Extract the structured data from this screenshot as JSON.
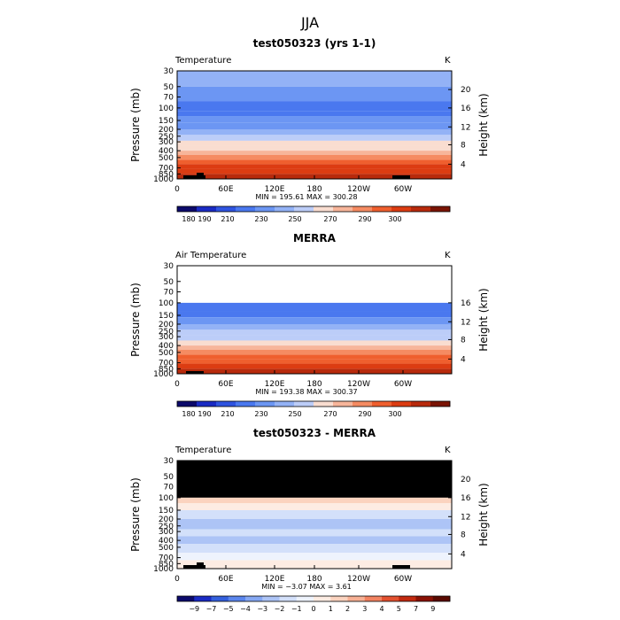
{
  "page_title": "JJA",
  "chart_data": [
    {
      "type": "heatmap",
      "title": "test050323 (yrs 1-1)",
      "variable_label": "Temperature",
      "units": "K",
      "ylabel": "Pressure (mb)",
      "ylabel_right": "Height (km)",
      "xticks": [
        "0",
        "60E",
        "120E",
        "180",
        "120W",
        "60W"
      ],
      "yticks": [
        "30",
        "50",
        "70",
        "100",
        "150",
        "200",
        "250",
        "300",
        "400",
        "500",
        "700",
        "850",
        "1000"
      ],
      "right_ticks": [
        "20",
        "16",
        "12",
        "8",
        "4"
      ],
      "stats": "MIN = 195.61  MAX = 300.28",
      "colorbar_labels": [
        "180",
        "190",
        "210",
        "230",
        "250",
        "270",
        "290",
        "300"
      ],
      "bands": [
        {
          "p_top": 30,
          "p_bot": 50,
          "value": 222
        },
        {
          "p_top": 50,
          "p_bot": 80,
          "value": 212
        },
        {
          "p_top": 80,
          "p_bot": 110,
          "value": 200
        },
        {
          "p_top": 110,
          "p_bot": 130,
          "value": 206
        },
        {
          "p_top": 130,
          "p_bot": 160,
          "value": 212
        },
        {
          "p_top": 160,
          "p_bot": 200,
          "value": 218
        },
        {
          "p_top": 200,
          "p_bot": 240,
          "value": 224
        },
        {
          "p_top": 240,
          "p_bot": 290,
          "value": 232
        },
        {
          "p_top": 290,
          "p_bot": 340,
          "value": 240
        },
        {
          "p_top": 340,
          "p_bot": 400,
          "value": 248
        },
        {
          "p_top": 400,
          "p_bot": 460,
          "value": 256
        },
        {
          "p_top": 460,
          "p_bot": 540,
          "value": 264
        },
        {
          "p_top": 540,
          "p_bot": 620,
          "value": 272
        },
        {
          "p_top": 620,
          "p_bot": 720,
          "value": 280
        },
        {
          "p_top": 720,
          "p_bot": 850,
          "value": 288
        },
        {
          "p_top": 850,
          "p_bot": 1000,
          "value": 294
        }
      ]
    },
    {
      "type": "heatmap",
      "title": "MERRA",
      "variable_label": "Air Temperature",
      "units": "K",
      "ylabel": "Pressure (mb)",
      "ylabel_right": "Height (km)",
      "xticks": [
        "0",
        "60E",
        "120E",
        "180",
        "120W",
        "60W"
      ],
      "yticks": [
        "30",
        "50",
        "70",
        "100",
        "150",
        "200",
        "250",
        "300",
        "400",
        "500",
        "700",
        "850",
        "1000"
      ],
      "right_ticks": [
        "16",
        "12",
        "8",
        "4"
      ],
      "stats": "MIN = 193.38  MAX = 300.37",
      "colorbar_labels": [
        "180",
        "190",
        "210",
        "230",
        "250",
        "270",
        "290",
        "300"
      ],
      "bands": [
        {
          "p_top": 100,
          "p_bot": 130,
          "value": 200
        },
        {
          "p_top": 130,
          "p_bot": 160,
          "value": 206
        },
        {
          "p_top": 160,
          "p_bot": 200,
          "value": 214
        },
        {
          "p_top": 200,
          "p_bot": 240,
          "value": 222
        },
        {
          "p_top": 240,
          "p_bot": 290,
          "value": 230
        },
        {
          "p_top": 290,
          "p_bot": 340,
          "value": 238
        },
        {
          "p_top": 340,
          "p_bot": 400,
          "value": 246
        },
        {
          "p_top": 400,
          "p_bot": 460,
          "value": 254
        },
        {
          "p_top": 460,
          "p_bot": 540,
          "value": 262
        },
        {
          "p_top": 540,
          "p_bot": 620,
          "value": 270
        },
        {
          "p_top": 620,
          "p_bot": 720,
          "value": 278
        },
        {
          "p_top": 720,
          "p_bot": 850,
          "value": 286
        },
        {
          "p_top": 850,
          "p_bot": 1000,
          "value": 294
        }
      ]
    },
    {
      "type": "heatmap",
      "title": "test050323 - MERRA",
      "variable_label": "Temperature",
      "units": "K",
      "ylabel": "Pressure (mb)",
      "ylabel_right": "Height (km)",
      "xticks": [
        "0",
        "60E",
        "120E",
        "180",
        "120W",
        "60W"
      ],
      "yticks": [
        "30",
        "50",
        "70",
        "100",
        "150",
        "200",
        "250",
        "300",
        "400",
        "500",
        "700",
        "850",
        "1000"
      ],
      "right_ticks": [
        "20",
        "16",
        "12",
        "8",
        "4"
      ],
      "stats": "MIN = −3.07  MAX =    3.61",
      "colorbar_labels": [
        "−9",
        "−7",
        "−5",
        "−4",
        "−3",
        "−2",
        "−1",
        "0",
        "1",
        "2",
        "3",
        "4",
        "5",
        "7",
        "9"
      ],
      "bands": [
        {
          "p_top": 30,
          "p_bot": 100,
          "value": null
        },
        {
          "p_top": 100,
          "p_bot": 120,
          "value": 1.5
        },
        {
          "p_top": 120,
          "p_bot": 150,
          "value": 0.5
        },
        {
          "p_top": 150,
          "p_bot": 200,
          "value": -1.5
        },
        {
          "p_top": 200,
          "p_bot": 280,
          "value": -2.5
        },
        {
          "p_top": 280,
          "p_bot": 350,
          "value": -1.5
        },
        {
          "p_top": 350,
          "p_bot": 450,
          "value": -2.5
        },
        {
          "p_top": 450,
          "p_bot": 600,
          "value": -1.5
        },
        {
          "p_top": 600,
          "p_bot": 760,
          "value": -0.5
        },
        {
          "p_top": 760,
          "p_bot": 1000,
          "value": 0.5
        }
      ]
    }
  ]
}
